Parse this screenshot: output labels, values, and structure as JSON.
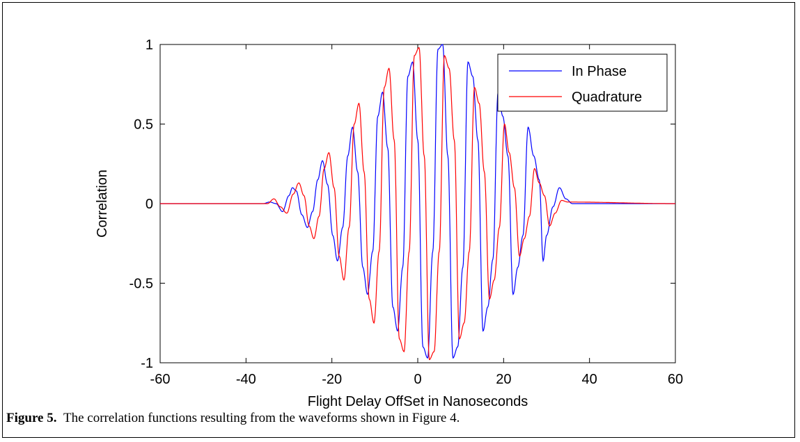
{
  "caption": {
    "label": "Figure 5.",
    "text": "The correlation functions resulting from the waveforms shown in Figure 4."
  },
  "chart_data": {
    "type": "line",
    "xlabel": "Flight Delay OffSet in Nanoseconds",
    "ylabel": "Correlation",
    "xlim": [
      -60,
      60
    ],
    "ylim": [
      -1,
      1
    ],
    "xticks": [
      -60,
      -40,
      -20,
      0,
      20,
      40,
      60
    ],
    "yticks": [
      -1,
      -0.5,
      0,
      0.5,
      1
    ],
    "xtick_labels": [
      "-60",
      "-40",
      "-20",
      "0",
      "20",
      "40",
      "60"
    ],
    "ytick_labels": [
      "-1",
      "-0.5",
      "0",
      "0.5",
      "1"
    ],
    "grid": false,
    "legend_position": "top-right",
    "series": [
      {
        "name": "In Phase",
        "color": "#0000ff",
        "x": [
          -60,
          -36,
          -34.5,
          -33,
          -31.5,
          -30,
          -29.2,
          -28.3,
          -27,
          -25.7,
          -24.5,
          -23.3,
          -22.2,
          -21,
          -19.8,
          -18.7,
          -17.5,
          -16.3,
          -15.2,
          -14,
          -12.8,
          -11.7,
          -10.5,
          -9.3,
          -8.2,
          -7,
          -5.8,
          -4.7,
          -3.5,
          -2.3,
          -1.2,
          0,
          1.2,
          2.3,
          3.5,
          4.7,
          5.8,
          7,
          8.2,
          9.3,
          10.5,
          11.7,
          12.8,
          14,
          15.2,
          16.3,
          17.5,
          18.7,
          19.8,
          21,
          22.2,
          23.3,
          24.5,
          25.7,
          27,
          28.3,
          29.2,
          30,
          31.5,
          33,
          34.5,
          36,
          60
        ],
        "y": [
          0,
          0,
          0.01,
          0.0,
          -0.05,
          0.05,
          0.1,
          0.08,
          -0.07,
          -0.15,
          -0.05,
          0.15,
          0.27,
          0.12,
          -0.2,
          -0.36,
          -0.15,
          0.3,
          0.48,
          0.2,
          -0.4,
          -0.57,
          -0.3,
          0.55,
          0.7,
          0.35,
          -0.65,
          -0.8,
          -0.4,
          0.8,
          0.89,
          0.4,
          -0.9,
          -0.97,
          -0.3,
          0.97,
          1.0,
          0.3,
          -0.97,
          -0.9,
          -0.4,
          0.89,
          0.8,
          0.4,
          -0.8,
          -0.65,
          -0.35,
          0.7,
          0.55,
          0.3,
          -0.57,
          -0.4,
          -0.2,
          0.48,
          0.3,
          0.15,
          -0.36,
          -0.2,
          -0.02,
          0.1,
          0.03,
          0,
          0
        ]
      },
      {
        "name": "Quadrature",
        "color": "#ff0000",
        "x": [
          -60,
          -35,
          -33.5,
          -32,
          -30.5,
          -29,
          -27.7,
          -26.5,
          -25.3,
          -24.2,
          -23,
          -21.8,
          -20.7,
          -19.5,
          -18.3,
          -17.2,
          -16,
          -14.8,
          -13.7,
          -12.5,
          -11.3,
          -10.2,
          -9,
          -7.8,
          -6.7,
          -5.5,
          -4.3,
          -3.2,
          -2,
          -0.8,
          0.3,
          1.5,
          2.7,
          3.8,
          5,
          6.2,
          7.3,
          8.5,
          9.7,
          10.8,
          12,
          13.2,
          14.3,
          15.5,
          16.7,
          17.8,
          19,
          20.2,
          21.3,
          22.5,
          23.7,
          24.8,
          26,
          27.2,
          28.3,
          29.5,
          30.7,
          32,
          33.5,
          35,
          60
        ],
        "y": [
          0,
          0,
          0.03,
          -0.02,
          -0.06,
          0.06,
          0.13,
          0.05,
          -0.14,
          -0.22,
          -0.08,
          0.22,
          0.32,
          0.1,
          -0.33,
          -0.48,
          -0.15,
          0.5,
          0.63,
          0.2,
          -0.6,
          -0.75,
          -0.3,
          0.73,
          0.85,
          0.4,
          -0.85,
          -0.93,
          -0.3,
          0.93,
          0.98,
          0.3,
          -0.98,
          -0.93,
          -0.3,
          0.93,
          0.85,
          0.4,
          -0.85,
          -0.75,
          -0.3,
          0.73,
          0.63,
          0.2,
          -0.6,
          -0.48,
          -0.15,
          0.5,
          0.32,
          0.1,
          -0.33,
          -0.22,
          -0.08,
          0.22,
          0.13,
          0.05,
          -0.14,
          -0.06,
          0.02,
          0.01,
          0
        ]
      }
    ]
  }
}
